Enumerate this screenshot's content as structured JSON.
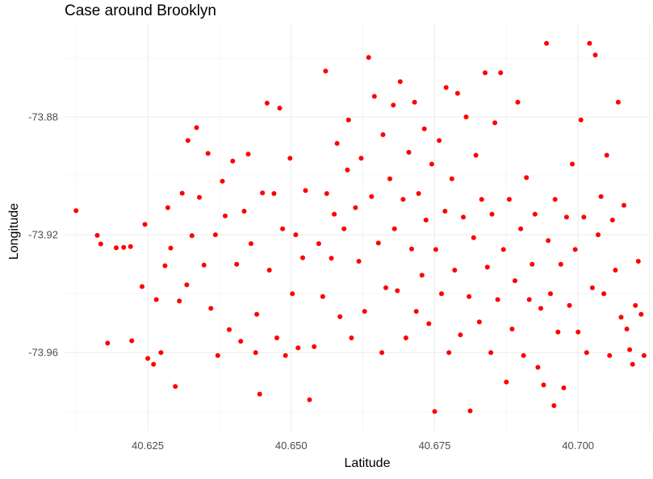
{
  "chart_data": {
    "type": "scatter",
    "title": "Case around Brooklyn",
    "xlabel": "Latitude",
    "ylabel": "Longitude",
    "xlim": [
      40.6105,
      40.7125
    ],
    "ylim": [
      -73.9865,
      -73.8485
    ],
    "x_ticks": [
      {
        "value": 40.625,
        "label": "40.625"
      },
      {
        "value": 40.65,
        "label": "40.650"
      },
      {
        "value": 40.675,
        "label": "40.675"
      },
      {
        "value": 40.7,
        "label": "40.700"
      }
    ],
    "y_ticks": [
      {
        "value": -73.88,
        "label": "-73.88"
      },
      {
        "value": -73.92,
        "label": "-73.92"
      },
      {
        "value": -73.96,
        "label": "-73.96"
      }
    ],
    "grid": true,
    "legend": "none",
    "point_color": "#ff0000",
    "series": [
      {
        "points": [
          [
            40.6125,
            -73.9118
          ],
          [
            40.6162,
            -73.9202
          ],
          [
            40.6168,
            -73.9231
          ],
          [
            40.618,
            -73.9568
          ],
          [
            40.6195,
            -73.9244
          ],
          [
            40.6208,
            -73.9243
          ],
          [
            40.622,
            -73.924
          ],
          [
            40.6222,
            -73.956
          ],
          [
            40.624,
            -73.9376
          ],
          [
            40.6245,
            -73.9165
          ],
          [
            40.625,
            -73.962
          ],
          [
            40.626,
            -73.964
          ],
          [
            40.6265,
            -73.942
          ],
          [
            40.6273,
            -73.96
          ],
          [
            40.628,
            -73.9305
          ],
          [
            40.6285,
            -73.9108
          ],
          [
            40.629,
            -73.9245
          ],
          [
            40.6298,
            -73.9715
          ],
          [
            40.6305,
            -73.9425
          ],
          [
            40.631,
            -73.9059
          ],
          [
            40.6318,
            -73.937
          ],
          [
            40.632,
            -73.888
          ],
          [
            40.6327,
            -73.9203
          ],
          [
            40.6335,
            -73.8836
          ],
          [
            40.634,
            -73.9073
          ],
          [
            40.6348,
            -73.9303
          ],
          [
            40.6355,
            -73.8924
          ],
          [
            40.636,
            -73.945
          ],
          [
            40.6368,
            -73.92
          ],
          [
            40.6372,
            -73.961
          ],
          [
            40.638,
            -73.9018
          ],
          [
            40.6385,
            -73.9136
          ],
          [
            40.6392,
            -73.9522
          ],
          [
            40.6398,
            -73.895
          ],
          [
            40.6405,
            -73.93
          ],
          [
            40.6412,
            -73.9562
          ],
          [
            40.6418,
            -73.912
          ],
          [
            40.6425,
            -73.8926
          ],
          [
            40.643,
            -73.923
          ],
          [
            40.6438,
            -73.96
          ],
          [
            40.644,
            -73.947
          ],
          [
            40.6445,
            -73.9741
          ],
          [
            40.645,
            -73.9058
          ],
          [
            40.6458,
            -73.8753
          ],
          [
            40.6462,
            -73.932
          ],
          [
            40.647,
            -73.906
          ],
          [
            40.6475,
            -73.955
          ],
          [
            40.648,
            -73.877
          ],
          [
            40.6485,
            -73.918
          ],
          [
            40.649,
            -73.961
          ],
          [
            40.6498,
            -73.894
          ],
          [
            40.6502,
            -73.94
          ],
          [
            40.6508,
            -73.92
          ],
          [
            40.6512,
            -73.9584
          ],
          [
            40.652,
            -73.9278
          ],
          [
            40.6525,
            -73.905
          ],
          [
            40.6532,
            -73.976
          ],
          [
            40.654,
            -73.958
          ],
          [
            40.6548,
            -73.923
          ],
          [
            40.6555,
            -73.941
          ],
          [
            40.656,
            -73.8644
          ],
          [
            40.6562,
            -73.906
          ],
          [
            40.657,
            -73.928
          ],
          [
            40.6575,
            -73.913
          ],
          [
            40.658,
            -73.889
          ],
          [
            40.6585,
            -73.9478
          ],
          [
            40.6592,
            -73.918
          ],
          [
            40.6598,
            -73.898
          ],
          [
            40.66,
            -73.881
          ],
          [
            40.6605,
            -73.955
          ],
          [
            40.6612,
            -73.9108
          ],
          [
            40.6618,
            -73.929
          ],
          [
            40.6622,
            -73.894
          ],
          [
            40.6628,
            -73.946
          ],
          [
            40.6635,
            -73.8598
          ],
          [
            40.664,
            -73.907
          ],
          [
            40.6645,
            -73.873
          ],
          [
            40.6652,
            -73.9228
          ],
          [
            40.6658,
            -73.96
          ],
          [
            40.666,
            -73.886
          ],
          [
            40.6665,
            -73.938
          ],
          [
            40.6672,
            -73.901
          ],
          [
            40.6678,
            -73.876
          ],
          [
            40.668,
            -73.918
          ],
          [
            40.6685,
            -73.939
          ],
          [
            40.669,
            -73.868
          ],
          [
            40.6695,
            -73.908
          ],
          [
            40.67,
            -73.955
          ],
          [
            40.6705,
            -73.892
          ],
          [
            40.671,
            -73.9248
          ],
          [
            40.6715,
            -73.875
          ],
          [
            40.6718,
            -73.946
          ],
          [
            40.6722,
            -73.906
          ],
          [
            40.6728,
            -73.9337
          ],
          [
            40.6732,
            -73.884
          ],
          [
            40.6735,
            -73.915
          ],
          [
            40.674,
            -73.9502
          ],
          [
            40.6745,
            -73.896
          ],
          [
            40.675,
            -73.98
          ],
          [
            40.6752,
            -73.925
          ],
          [
            40.6758,
            -73.888
          ],
          [
            40.6762,
            -73.94
          ],
          [
            40.6768,
            -73.912
          ],
          [
            40.677,
            -73.87
          ],
          [
            40.6775,
            -73.96
          ],
          [
            40.678,
            -73.901
          ],
          [
            40.6785,
            -73.932
          ],
          [
            40.679,
            -73.872
          ],
          [
            40.6795,
            -73.954
          ],
          [
            40.68,
            -73.914
          ],
          [
            40.6805,
            -73.88
          ],
          [
            40.681,
            -73.941
          ],
          [
            40.6812,
            -73.9798
          ],
          [
            40.6818,
            -73.921
          ],
          [
            40.6822,
            -73.893
          ],
          [
            40.6828,
            -73.9496
          ],
          [
            40.6832,
            -73.908
          ],
          [
            40.6838,
            -73.865
          ],
          [
            40.6842,
            -73.931
          ],
          [
            40.6848,
            -73.96
          ],
          [
            40.685,
            -73.913
          ],
          [
            40.6855,
            -73.882
          ],
          [
            40.686,
            -73.942
          ],
          [
            40.6865,
            -73.865
          ],
          [
            40.687,
            -73.925
          ],
          [
            40.6875,
            -73.97
          ],
          [
            40.688,
            -73.908
          ],
          [
            40.6885,
            -73.952
          ],
          [
            40.689,
            -73.9356
          ],
          [
            40.6895,
            -73.875
          ],
          [
            40.69,
            -73.918
          ],
          [
            40.6905,
            -73.961
          ],
          [
            40.691,
            -73.9006
          ],
          [
            40.6915,
            -73.942
          ],
          [
            40.692,
            -73.93
          ],
          [
            40.6925,
            -73.913
          ],
          [
            40.693,
            -73.965
          ],
          [
            40.6935,
            -73.945
          ],
          [
            40.694,
            -73.971
          ],
          [
            40.6945,
            -73.855
          ],
          [
            40.6948,
            -73.922
          ],
          [
            40.6952,
            -73.94
          ],
          [
            40.6958,
            -73.978
          ],
          [
            40.696,
            -73.908
          ],
          [
            40.6965,
            -73.953
          ],
          [
            40.697,
            -73.93
          ],
          [
            40.6975,
            -73.972
          ],
          [
            40.698,
            -73.914
          ],
          [
            40.6985,
            -73.944
          ],
          [
            40.699,
            -73.896
          ],
          [
            40.6995,
            -73.925
          ],
          [
            40.7,
            -73.953
          ],
          [
            40.7005,
            -73.881
          ],
          [
            40.701,
            -73.914
          ],
          [
            40.7015,
            -73.96
          ],
          [
            40.702,
            -73.855
          ],
          [
            40.7025,
            -73.938
          ],
          [
            40.703,
            -73.859
          ],
          [
            40.7035,
            -73.92
          ],
          [
            40.704,
            -73.907
          ],
          [
            40.7045,
            -73.94
          ],
          [
            40.705,
            -73.893
          ],
          [
            40.7055,
            -73.961
          ],
          [
            40.706,
            -73.915
          ],
          [
            40.7065,
            -73.932
          ],
          [
            40.707,
            -73.875
          ],
          [
            40.7075,
            -73.948
          ],
          [
            40.708,
            -73.91
          ],
          [
            40.7085,
            -73.952
          ],
          [
            40.709,
            -73.959
          ],
          [
            40.7095,
            -73.964
          ],
          [
            40.71,
            -73.944
          ],
          [
            40.7105,
            -73.929
          ],
          [
            40.711,
            -73.947
          ],
          [
            40.7115,
            -73.961
          ]
        ]
      }
    ]
  }
}
